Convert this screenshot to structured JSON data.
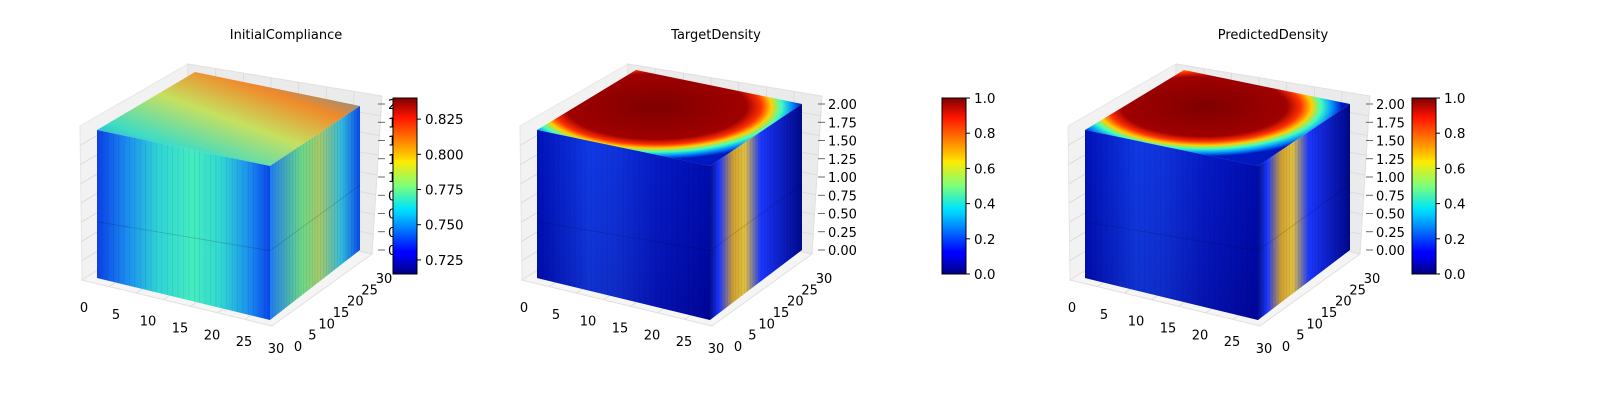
{
  "figure": {
    "titles": [
      "InitialCompliance",
      "TargetDensity",
      "PredictedDensity"
    ]
  },
  "chart_data": [
    {
      "type": "3d-voxel",
      "title": "InitialCompliance",
      "colormap": "jet",
      "x_ticks": [
        "0",
        "5",
        "10",
        "15",
        "20",
        "25",
        "30"
      ],
      "y_ticks": [
        "0",
        "5",
        "10",
        "15",
        "20",
        "25",
        "30"
      ],
      "z_ticks": [
        "0.00",
        "0.25",
        "0.50",
        "0.75",
        "1.00",
        "1.25",
        "1.50",
        "1.75",
        "2.00"
      ],
      "xlim": [
        0,
        32
      ],
      "ylim": [
        0,
        32
      ],
      "zlim": [
        0,
        2
      ],
      "colorbar": {
        "min": 0.715,
        "max": 0.84,
        "ticks": [
          "0.725",
          "0.750",
          "0.775",
          "0.800",
          "0.825"
        ]
      },
      "grid": true
    },
    {
      "type": "3d-voxel",
      "title": "TargetDensity",
      "colormap": "jet",
      "x_ticks": [
        "0",
        "5",
        "10",
        "15",
        "20",
        "25",
        "30"
      ],
      "y_ticks": [
        "0",
        "5",
        "10",
        "15",
        "20",
        "25",
        "30"
      ],
      "z_ticks": [
        "0.00",
        "0.25",
        "0.50",
        "0.75",
        "1.00",
        "1.25",
        "1.50",
        "1.75",
        "2.00"
      ],
      "xlim": [
        0,
        32
      ],
      "ylim": [
        0,
        32
      ],
      "zlim": [
        0,
        2
      ],
      "colorbar": {
        "min": 0.0,
        "max": 1.0,
        "ticks": [
          "0.0",
          "0.2",
          "0.4",
          "0.6",
          "0.8",
          "1.0"
        ]
      },
      "grid": true
    },
    {
      "type": "3d-voxel",
      "title": "PredictedDensity",
      "colormap": "jet",
      "x_ticks": [
        "0",
        "5",
        "10",
        "15",
        "20",
        "25",
        "30"
      ],
      "y_ticks": [
        "0",
        "5",
        "10",
        "15",
        "20",
        "25",
        "30"
      ],
      "z_ticks": [
        "0.00",
        "0.25",
        "0.50",
        "0.75",
        "1.00",
        "1.25",
        "1.50",
        "1.75",
        "2.00"
      ],
      "xlim": [
        0,
        32
      ],
      "ylim": [
        0,
        32
      ],
      "zlim": [
        0,
        2
      ],
      "colorbar": {
        "min": 0.0,
        "max": 1.0,
        "ticks": [
          "0.0",
          "0.2",
          "0.4",
          "0.6",
          "0.8",
          "1.0"
        ]
      },
      "grid": true
    }
  ]
}
